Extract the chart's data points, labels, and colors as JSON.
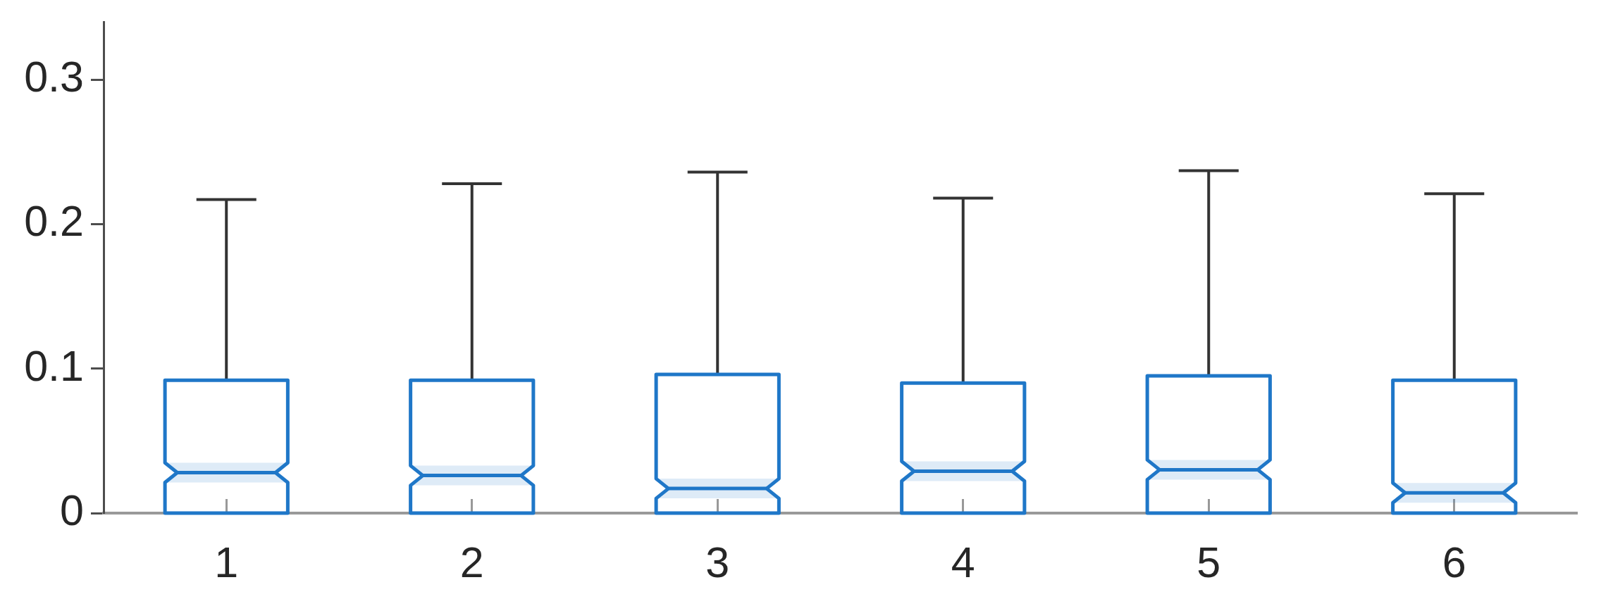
{
  "chart_data": {
    "type": "box",
    "categories": [
      "1",
      "2",
      "3",
      "4",
      "5",
      "6"
    ],
    "series": [
      {
        "color": "#1f77c8",
        "boxes": [
          {
            "low": 0,
            "q1": 0,
            "median": 0.028,
            "q3": 0.092,
            "high": 0.217
          },
          {
            "low": 0,
            "q1": 0,
            "median": 0.026,
            "q3": 0.092,
            "high": 0.228
          },
          {
            "low": 0,
            "q1": 0,
            "median": 0.017,
            "q3": 0.096,
            "high": 0.236
          },
          {
            "low": 0,
            "q1": 0,
            "median": 0.029,
            "q3": 0.09,
            "high": 0.218
          },
          {
            "low": 0,
            "q1": 0,
            "median": 0.03,
            "q3": 0.095,
            "high": 0.237
          },
          {
            "low": 0,
            "q1": 0,
            "median": 0.014,
            "q3": 0.092,
            "high": 0.221
          }
        ]
      }
    ],
    "ylim": [
      0,
      0.34
    ],
    "yticks": [
      0,
      0.1,
      0.2,
      0.3
    ]
  }
}
